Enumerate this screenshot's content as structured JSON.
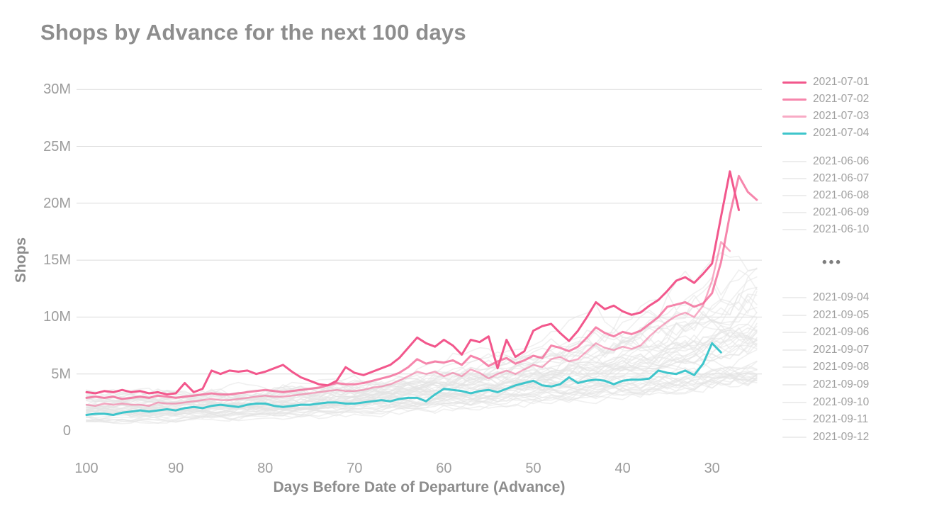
{
  "title": "Shops by Advance for the next 100 days",
  "y_axis": {
    "label": "Shops",
    "ticks": [
      {
        "label": "30M",
        "value_M": 30
      },
      {
        "label": "25M",
        "value_M": 25
      },
      {
        "label": "20M",
        "value_M": 20
      },
      {
        "label": "15M",
        "value_M": 15
      },
      {
        "label": "10M",
        "value_M": 10
      },
      {
        "label": "5M",
        "value_M": 5
      },
      {
        "label": "0",
        "value_M": 0
      }
    ],
    "gridline_values_M": [
      30,
      25,
      20,
      15,
      10,
      5
    ]
  },
  "x_axis": {
    "label": "Days Before Date of Departure (Advance)",
    "ticks": [
      {
        "label": "100",
        "day": 100
      },
      {
        "label": "90",
        "day": 90
      },
      {
        "label": "80",
        "day": 80
      },
      {
        "label": "70",
        "day": 70
      },
      {
        "label": "60",
        "day": 60
      },
      {
        "label": "50",
        "day": 50
      },
      {
        "label": "40",
        "day": 40
      },
      {
        "label": "30",
        "day": 30
      }
    ]
  },
  "legend": {
    "highlighted": [
      {
        "label": "2021-07-01",
        "color": "#F2578C",
        "opacity": 1
      },
      {
        "label": "2021-07-02",
        "color": "#F2578C",
        "opacity": 0.72
      },
      {
        "label": "2021-07-03",
        "color": "#F2578C",
        "opacity": 0.5
      },
      {
        "label": "2021-07-04",
        "color": "#3EC5CB",
        "opacity": 1
      }
    ],
    "muted_top": [
      "2021-06-06",
      "2021-06-07",
      "2021-06-08",
      "2021-06-09",
      "2021-06-10"
    ],
    "ellipsis": "•••",
    "muted_bottom": [
      "2021-09-04",
      "2021-09-05",
      "2021-09-06",
      "2021-09-07",
      "2021-09-08",
      "2021-09-09",
      "2021-09-10",
      "2021-09-11",
      "2021-09-12"
    ],
    "muted_color": "#EDEDED"
  },
  "chart_data": {
    "type": "line",
    "title": "Shops by Advance for the next 100 days",
    "xlabel": "Days Before Date of Departure (Advance)",
    "ylabel": "Shops",
    "x_axis_reversed": true,
    "x_range_days": [
      100,
      25
    ],
    "ylim_M": [
      0,
      30
    ],
    "grid": "horizontal",
    "legend_position": "right",
    "series": [
      {
        "name": "2021-07-01",
        "color": "#F2578C",
        "opacity": 1,
        "width": 3,
        "day_start": 100,
        "day_step": -1,
        "values_M": [
          3.4,
          3.3,
          3.5,
          3.4,
          3.6,
          3.4,
          3.5,
          3.3,
          3.4,
          3.2,
          3.3,
          4.2,
          3.4,
          3.7,
          5.3,
          5.0,
          5.3,
          5.2,
          5.3,
          5.0,
          5.2,
          5.5,
          5.8,
          5.2,
          4.7,
          4.4,
          4.1,
          4.0,
          4.4,
          5.6,
          5.1,
          4.9,
          5.2,
          5.5,
          5.8,
          6.4,
          7.3,
          8.2,
          7.7,
          7.4,
          8.0,
          7.5,
          6.7,
          8.0,
          7.8,
          8.3,
          5.5,
          8.0,
          6.5,
          7.0,
          8.8,
          9.2,
          9.4,
          8.6,
          7.9,
          8.8,
          10.0,
          11.3,
          10.7,
          11.0,
          10.5,
          10.2,
          10.4,
          11.0,
          11.5,
          12.3,
          13.2,
          13.5,
          13.0,
          13.8,
          14.7,
          18.8,
          22.8,
          19.4
        ]
      },
      {
        "name": "2021-07-02",
        "color": "#F2578C",
        "opacity": 0.72,
        "width": 3,
        "day_start": 100,
        "day_step": -1,
        "values_M": [
          2.9,
          3.0,
          2.9,
          3.0,
          2.8,
          2.9,
          3.0,
          2.9,
          3.1,
          3.0,
          2.9,
          3.0,
          3.1,
          3.2,
          3.3,
          3.2,
          3.2,
          3.3,
          3.4,
          3.5,
          3.6,
          3.5,
          3.4,
          3.5,
          3.6,
          3.7,
          3.8,
          4.0,
          4.2,
          4.1,
          4.1,
          4.2,
          4.4,
          4.6,
          4.8,
          5.1,
          5.6,
          6.3,
          5.9,
          6.1,
          6.0,
          6.2,
          5.8,
          6.6,
          6.3,
          5.7,
          6.1,
          6.4,
          5.9,
          6.2,
          6.6,
          6.4,
          7.5,
          7.3,
          7.0,
          7.4,
          8.2,
          9.1,
          8.6,
          8.3,
          8.7,
          8.5,
          8.8,
          9.4,
          10.0,
          10.9,
          11.1,
          11.3,
          10.9,
          11.2,
          12.1,
          14.8,
          19.0,
          22.4,
          21.0,
          20.3
        ]
      },
      {
        "name": "2021-07-03",
        "color": "#F2578C",
        "opacity": 0.5,
        "width": 2.5,
        "day_start": 100,
        "day_step": -1,
        "values_M": [
          2.3,
          2.2,
          2.4,
          2.3,
          2.4,
          2.3,
          2.3,
          2.2,
          2.5,
          2.4,
          2.4,
          2.5,
          2.6,
          2.7,
          2.8,
          2.7,
          2.7,
          2.8,
          2.9,
          3.0,
          3.1,
          3.0,
          3.0,
          3.1,
          3.2,
          3.3,
          3.4,
          3.5,
          3.6,
          3.5,
          3.5,
          3.6,
          3.8,
          3.9,
          4.1,
          4.4,
          4.8,
          5.2,
          5.0,
          5.2,
          4.8,
          5.1,
          4.8,
          5.4,
          5.1,
          4.6,
          5.0,
          5.3,
          5.0,
          5.4,
          5.8,
          5.6,
          6.3,
          6.5,
          6.1,
          6.3,
          7.0,
          7.7,
          7.3,
          7.1,
          7.4,
          7.2,
          7.5,
          8.3,
          9.0,
          9.6,
          10.1,
          10.4,
          10.0,
          11.0,
          13.2,
          16.6,
          15.8
        ]
      },
      {
        "name": "2021-07-04",
        "color": "#3EC5CB",
        "opacity": 1,
        "width": 3,
        "day_start": 100,
        "day_step": -1,
        "values_M": [
          1.4,
          1.5,
          1.5,
          1.4,
          1.6,
          1.7,
          1.8,
          1.7,
          1.8,
          1.9,
          1.8,
          2.0,
          2.1,
          2.0,
          2.2,
          2.3,
          2.2,
          2.1,
          2.3,
          2.4,
          2.4,
          2.2,
          2.1,
          2.2,
          2.3,
          2.3,
          2.4,
          2.5,
          2.5,
          2.4,
          2.4,
          2.5,
          2.6,
          2.7,
          2.6,
          2.8,
          2.9,
          2.9,
          2.6,
          3.2,
          3.7,
          3.6,
          3.5,
          3.3,
          3.5,
          3.6,
          3.4,
          3.7,
          4.0,
          4.2,
          4.4,
          4.0,
          3.9,
          4.1,
          4.7,
          4.2,
          4.4,
          4.5,
          4.4,
          4.1,
          4.4,
          4.5,
          4.5,
          4.6,
          5.3,
          5.1,
          5.0,
          5.3,
          4.9,
          5.9,
          7.7,
          6.9
        ]
      }
    ],
    "background_series": {
      "description": "other departure dates from 2021-06-06 through 2021-09-12 drawn as light gray lines",
      "count": 52,
      "color": "#E4E4E4",
      "opacity": 0.55,
      "start_M_range": [
        0.8,
        3.3
      ],
      "end_M_range": [
        4.5,
        15.5
      ]
    }
  }
}
